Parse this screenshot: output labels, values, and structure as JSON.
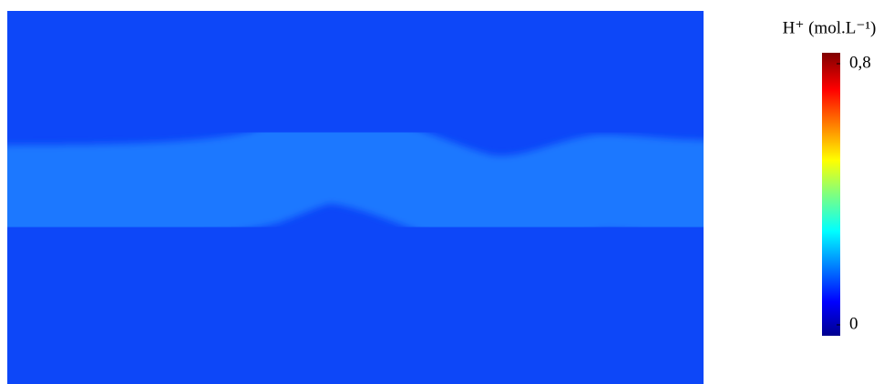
{
  "chart_data": {
    "type": "heatmap",
    "colorbar": {
      "title": "H⁺ (mol.L⁻¹)",
      "zlim": [
        0,
        0.8
      ],
      "zticks": [
        {
          "value": 0.8,
          "label": "0,8"
        },
        0
      ]
    }
  }
}
